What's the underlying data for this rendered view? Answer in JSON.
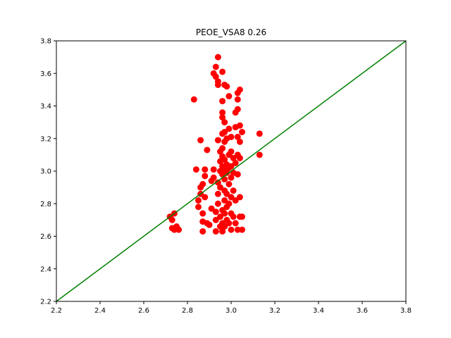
{
  "chart_data": {
    "type": "scatter",
    "title": "PEOE_VSA8 0.26",
    "xlabel": "",
    "ylabel": "",
    "xlim": [
      2.2,
      3.8
    ],
    "ylim": [
      2.2,
      3.8
    ],
    "xticks": [
      "2.2",
      "2.4",
      "2.6",
      "2.8",
      "3.0",
      "3.2",
      "3.4",
      "3.6",
      "3.8"
    ],
    "yticks": [
      "2.2",
      "2.4",
      "2.6",
      "2.8",
      "3.0",
      "3.2",
      "3.4",
      "3.6",
      "3.8"
    ],
    "grid": false,
    "legend": "none",
    "colors": {
      "points": "#ff0000",
      "reference_line": "#008000"
    },
    "reference_line": {
      "x": [
        2.2,
        3.8
      ],
      "y": [
        2.2,
        3.8
      ]
    },
    "series": [
      {
        "points": [
          [
            2.72,
            2.72
          ],
          [
            2.73,
            2.7
          ],
          [
            2.74,
            2.74
          ],
          [
            2.73,
            2.65
          ],
          [
            2.74,
            2.64
          ],
          [
            2.75,
            2.66
          ],
          [
            2.76,
            2.64
          ],
          [
            2.83,
            3.44
          ],
          [
            2.84,
            3.01
          ],
          [
            2.85,
            2.78
          ],
          [
            2.85,
            2.82
          ],
          [
            2.86,
            2.86
          ],
          [
            2.86,
            2.9
          ],
          [
            2.86,
            3.19
          ],
          [
            2.87,
            2.63
          ],
          [
            2.87,
            2.69
          ],
          [
            2.87,
            2.74
          ],
          [
            2.87,
            2.92
          ],
          [
            2.88,
            2.97
          ],
          [
            2.88,
            3.01
          ],
          [
            2.88,
            2.84
          ],
          [
            2.89,
            2.68
          ],
          [
            2.89,
            3.13
          ],
          [
            2.9,
            2.67
          ],
          [
            2.91,
            2.77
          ],
          [
            2.91,
            2.94
          ],
          [
            2.92,
            3.01
          ],
          [
            2.92,
            2.96
          ],
          [
            2.92,
            3.6
          ],
          [
            2.93,
            3.58
          ],
          [
            2.93,
            3.64
          ],
          [
            2.93,
            2.63
          ],
          [
            2.93,
            2.7
          ],
          [
            2.93,
            2.75
          ],
          [
            2.94,
            3.7
          ],
          [
            2.94,
            3.55
          ],
          [
            2.94,
            3.53
          ],
          [
            2.94,
            2.8
          ],
          [
            2.94,
            2.86
          ],
          [
            2.94,
            2.93
          ],
          [
            2.94,
            3.19
          ],
          [
            2.95,
            3.12
          ],
          [
            2.95,
            3.06
          ],
          [
            2.95,
            2.66
          ],
          [
            2.95,
            2.72
          ],
          [
            2.95,
            2.9
          ],
          [
            2.95,
            3.0
          ],
          [
            2.96,
            3.61
          ],
          [
            2.96,
            3.43
          ],
          [
            2.96,
            3.36
          ],
          [
            2.96,
            3.33
          ],
          [
            2.96,
            3.23
          ],
          [
            2.96,
            3.14
          ],
          [
            2.96,
            3.09
          ],
          [
            2.96,
            3.03
          ],
          [
            2.96,
            2.98
          ],
          [
            2.96,
            2.76
          ],
          [
            2.96,
            2.68
          ],
          [
            2.96,
            2.63
          ],
          [
            2.97,
            3.53
          ],
          [
            2.97,
            3.3
          ],
          [
            2.97,
            3.24
          ],
          [
            2.97,
            3.18
          ],
          [
            2.97,
            3.07
          ],
          [
            2.97,
            3.01
          ],
          [
            2.97,
            2.95
          ],
          [
            2.97,
            2.88
          ],
          [
            2.97,
            2.82
          ],
          [
            2.97,
            2.74
          ],
          [
            2.97,
            2.66
          ],
          [
            2.98,
            3.52
          ],
          [
            2.98,
            3.2
          ],
          [
            2.98,
            3.04
          ],
          [
            2.98,
            2.99
          ],
          [
            2.98,
            2.86
          ],
          [
            2.98,
            2.78
          ],
          [
            2.98,
            2.7
          ],
          [
            2.99,
            3.46
          ],
          [
            2.99,
            3.26
          ],
          [
            2.99,
            3.1
          ],
          [
            2.99,
            3.02
          ],
          [
            2.99,
            2.92
          ],
          [
            2.99,
            2.8
          ],
          [
            2.99,
            2.68
          ],
          [
            3.0,
            3.21
          ],
          [
            3.0,
            3.12
          ],
          [
            3.0,
            3.03
          ],
          [
            3.0,
            2.96
          ],
          [
            3.0,
            2.84
          ],
          [
            3.0,
            2.74
          ],
          [
            3.0,
            2.64
          ],
          [
            3.01,
            3.08
          ],
          [
            3.01,
            2.99
          ],
          [
            3.01,
            2.88
          ],
          [
            3.01,
            2.72
          ],
          [
            3.02,
            3.36
          ],
          [
            3.02,
            3.27
          ],
          [
            3.02,
            3.05
          ],
          [
            3.02,
            2.82
          ],
          [
            3.02,
            2.68
          ],
          [
            3.03,
            3.48
          ],
          [
            3.03,
            3.44
          ],
          [
            3.03,
            3.38
          ],
          [
            3.03,
            3.21
          ],
          [
            3.03,
            3.1
          ],
          [
            3.03,
            2.98
          ],
          [
            3.03,
            2.64
          ],
          [
            3.04,
            3.5
          ],
          [
            3.04,
            3.28
          ],
          [
            3.04,
            3.18
          ],
          [
            3.04,
            3.08
          ],
          [
            3.04,
            2.84
          ],
          [
            3.04,
            2.72
          ],
          [
            3.05,
            3.24
          ],
          [
            3.05,
            2.64
          ],
          [
            3.05,
            2.72
          ],
          [
            3.13,
            3.23
          ],
          [
            3.13,
            3.1
          ]
        ]
      }
    ]
  }
}
